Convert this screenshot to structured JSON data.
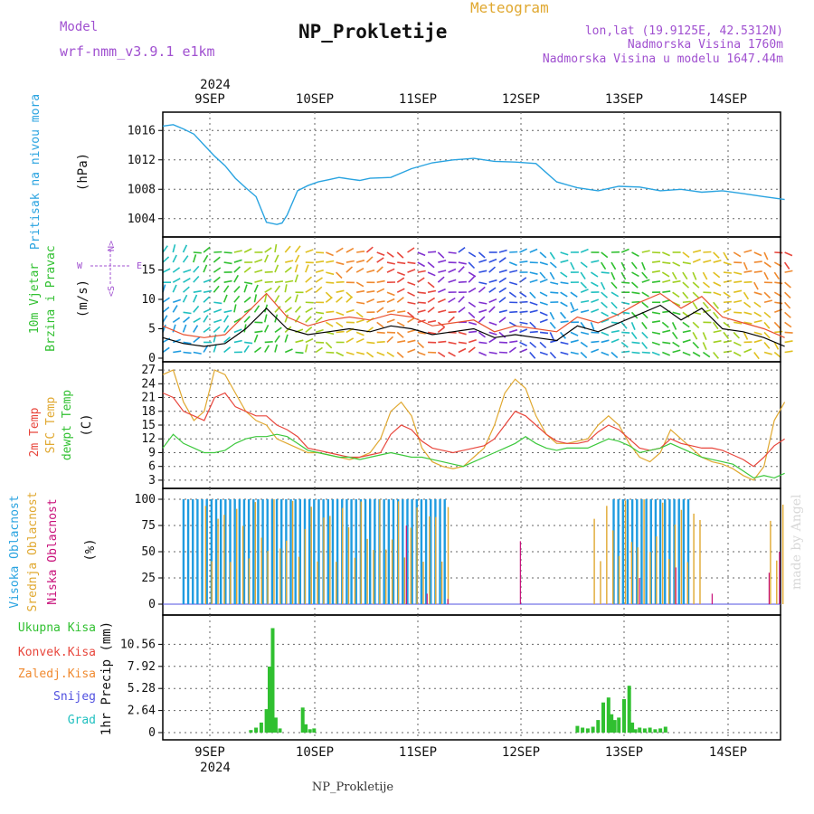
{
  "header": {
    "model_label": "Model",
    "model_name": "wrf-nmm_v3.9.1  e1km",
    "title": "NP_Prokletije",
    "subtitle": "Meteogram",
    "coords": "lon,lat (19.9125E, 42.5312N)",
    "altitude": "Nadmorska Visina 1760m",
    "model_altitude": "Nadmorska Visina u modelu 1647.44m"
  },
  "footer": {
    "station": "NP_Prokletije",
    "credit": "made by Angel"
  },
  "time_axis": {
    "year_label": "2024",
    "days": [
      "9SEP",
      "10SEP",
      "11SEP",
      "12SEP",
      "13SEP",
      "14SEP"
    ]
  },
  "colors": {
    "pressure": "#29a3e0",
    "wind_speed": "#000000",
    "wind_gust": "#e8502e",
    "temp_2m": "#e8463c",
    "temp_sfc": "#e0a830",
    "dewpoint": "#3cc83c",
    "cloud_high": "#1e9be0",
    "cloud_mid": "#e0a830",
    "cloud_low": "#c8107a",
    "precip_total": "#30c030",
    "panel_label_blue": "#29a3e0",
    "panel_label_green": "#30c030",
    "panel_label_purple": "#a050d0"
  },
  "chart_data": [
    {
      "type": "line",
      "name": "pressure",
      "ylabel_side": "Pritisak na nivou mora",
      "ylabel": "(hPa)",
      "yticks": [
        "1016",
        "1012",
        "1008",
        "1004"
      ],
      "ylim": [
        1002,
        1018
      ],
      "grid": true,
      "x_days": [
        0,
        0.1,
        0.2,
        0.3,
        0.4,
        0.5,
        0.6,
        0.7,
        0.8,
        0.9,
        1.0,
        1.1,
        1.15,
        1.2,
        1.3,
        1.4,
        1.5,
        1.6,
        1.7,
        1.8,
        1.9,
        2.0,
        2.2,
        2.4,
        2.6,
        2.8,
        3.0,
        3.2,
        3.4,
        3.6,
        3.8,
        4.0,
        4.2,
        4.4,
        4.6,
        4.8,
        5.0,
        5.2,
        5.4,
        5.6,
        5.8,
        6.0
      ],
      "series": [
        {
          "name": "",
          "values": [
            1016.6,
            1016.8,
            1016.2,
            1015.5,
            1014.0,
            1012.5,
            1011.2,
            1009.5,
            1008.2,
            1007.0,
            1003.5,
            1003.2,
            1003.4,
            1004.5,
            1007.8,
            1008.5,
            1009.0,
            1009.3,
            1009.6,
            1009.4,
            1009.2,
            1009.5,
            1009.6,
            1010.8,
            1011.6,
            1012.0,
            1012.2,
            1011.8,
            1011.7,
            1011.5,
            1009.0,
            1008.2,
            1007.8,
            1008.4,
            1008.3,
            1007.8,
            1008.0,
            1007.6,
            1007.8,
            1007.4,
            1007.0,
            1006.6
          ]
        }
      ]
    },
    {
      "type": "line",
      "name": "wind",
      "ylabel_side": "10m Vjetar Brzina i Pravac",
      "ylabel": "(m/s)",
      "compass": {
        "n": "N",
        "s": "S",
        "e": "E",
        "w": "W"
      },
      "yticks": [
        "15",
        "10",
        "5",
        "0"
      ],
      "ylim": [
        0,
        20
      ],
      "x_days": [
        0,
        0.2,
        0.4,
        0.6,
        0.8,
        1.0,
        1.2,
        1.4,
        1.6,
        1.8,
        2.0,
        2.2,
        2.4,
        2.6,
        2.8,
        3.0,
        3.2,
        3.4,
        3.6,
        3.8,
        4.0,
        4.2,
        4.4,
        4.6,
        4.8,
        5.0,
        5.2,
        5.4,
        5.6,
        5.8,
        6.0
      ],
      "series": [
        {
          "name": "",
          "values": [
            3.5,
            2.5,
            2.0,
            2.5,
            5.0,
            8.5,
            5.0,
            4.0,
            4.5,
            5.0,
            4.5,
            5.5,
            5.0,
            4.0,
            4.5,
            5.0,
            3.5,
            4.0,
            3.5,
            3.0,
            5.5,
            4.5,
            6.0,
            7.5,
            9.0,
            6.5,
            8.5,
            5.0,
            4.5,
            3.5,
            2.0
          ]
        },
        {
          "name": "",
          "values": [
            5.5,
            4.0,
            3.5,
            4.0,
            7.5,
            11.0,
            7.0,
            5.5,
            6.5,
            7.0,
            6.5,
            7.5,
            7.0,
            5.5,
            6.0,
            6.5,
            4.5,
            5.5,
            5.0,
            4.5,
            7.0,
            6.0,
            7.5,
            9.5,
            11.0,
            8.5,
            10.5,
            7.0,
            6.0,
            5.0,
            3.5
          ]
        }
      ]
    },
    {
      "type": "line",
      "name": "temperature",
      "ylabel_side": "2m Temp / SFC Temp / dewpt Temp",
      "series_labels": [
        "2m Temp",
        "SFC Temp",
        "dewpt Temp"
      ],
      "ylabel": "(C)",
      "yticks": [
        "27",
        "24",
        "21",
        "18",
        "15",
        "12",
        "9",
        "6",
        "3"
      ],
      "ylim": [
        2,
        28
      ],
      "x_days": [
        0,
        0.1,
        0.2,
        0.3,
        0.4,
        0.5,
        0.6,
        0.7,
        0.8,
        0.9,
        1.0,
        1.1,
        1.2,
        1.3,
        1.4,
        1.5,
        1.6,
        1.7,
        1.8,
        1.9,
        2.0,
        2.1,
        2.2,
        2.3,
        2.4,
        2.5,
        2.6,
        2.7,
        2.8,
        2.9,
        3.0,
        3.1,
        3.2,
        3.3,
        3.4,
        3.5,
        3.6,
        3.7,
        3.8,
        3.9,
        4.0,
        4.1,
        4.2,
        4.3,
        4.4,
        4.5,
        4.6,
        4.7,
        4.8,
        4.9,
        5.0,
        5.1,
        5.2,
        5.3,
        5.4,
        5.5,
        5.6,
        5.7,
        5.8,
        5.9,
        6.0
      ],
      "series": [
        {
          "name": "",
          "values": [
            22,
            21,
            18,
            17,
            16,
            21,
            22,
            19,
            18,
            17,
            17,
            15,
            14,
            12.5,
            10,
            9.5,
            9,
            8.5,
            8,
            8,
            8.5,
            9,
            13,
            15,
            14,
            11.5,
            10,
            9.5,
            9,
            9.5,
            10,
            10.5,
            12,
            15,
            18,
            17,
            15,
            13,
            11.5,
            11,
            11,
            11.5,
            13.5,
            15,
            14,
            12,
            10,
            9.5,
            10,
            12,
            11,
            10.5,
            10,
            10,
            9.5,
            8.5,
            7.5,
            6,
            8,
            10.5,
            12
          ]
        },
        {
          "name": "",
          "values": [
            26,
            27,
            20,
            16,
            18,
            27,
            26,
            22,
            18,
            16,
            15,
            12,
            11,
            10,
            9,
            9,
            8.5,
            8,
            7.5,
            8,
            9,
            12,
            18,
            20,
            17,
            10,
            7,
            6,
            5.5,
            6,
            8,
            10,
            15,
            22,
            25,
            23,
            17,
            13,
            11,
            11,
            11.5,
            12,
            15,
            17,
            15,
            11,
            8,
            7,
            9,
            14,
            12,
            10,
            8,
            7,
            6.5,
            5.5,
            4,
            3,
            6,
            16,
            20
          ]
        },
        {
          "name": "",
          "values": [
            10,
            13,
            11,
            10,
            9,
            9,
            9.5,
            11,
            12,
            12.5,
            12.5,
            13,
            12.5,
            11,
            9.5,
            9,
            8.5,
            8,
            8,
            7.5,
            8,
            8.5,
            9,
            8.5,
            8,
            8,
            7.5,
            7,
            6.5,
            6,
            7,
            8,
            9,
            10,
            11,
            12.5,
            11,
            10,
            9.5,
            10,
            10,
            10,
            11,
            12,
            11.5,
            10.5,
            9,
            9.5,
            10,
            11,
            10,
            9,
            8,
            7.5,
            7,
            6.5,
            5,
            3.5,
            4,
            3.5,
            4.5
          ]
        }
      ]
    },
    {
      "type": "bar",
      "name": "cloud_cover",
      "ylabel_side": "Visoka Oblacnost / Srednja Oblacnost / Niska Oblacnost",
      "series_labels": [
        "Visoka Oblacnost",
        "Srednja Oblacnost",
        "Niska Oblacnost"
      ],
      "ylabel": "(%)",
      "yticks": [
        "100",
        "75",
        "50",
        "25",
        "0"
      ],
      "ylim": [
        0,
        100
      ],
      "high_cloud_100_day_ranges": [
        [
          0.2,
          2.75
        ],
        [
          4.35,
          5.1
        ]
      ],
      "mid_cloud_ranges": [
        [
          0.4,
          2.8
        ],
        [
          4.15,
          5.2
        ],
        [
          5.85,
          6.0
        ]
      ],
      "low_cloud_spikes_days": [
        2.35,
        2.55,
        2.75,
        3.45,
        4.6,
        4.95,
        5.3,
        5.85,
        5.95
      ],
      "low_cloud_spike_values": [
        75,
        10,
        5,
        60,
        25,
        35,
        10,
        30,
        50
      ]
    },
    {
      "type": "bar",
      "name": "precipitation",
      "ylabel_side": "1hr Precip (mm)",
      "legend": [
        "Ukupna  Kisa",
        "Konvek.Kisa",
        "Zaledj.Kisa",
        "Snijeg",
        "Grad"
      ],
      "legend_colors": [
        "#30c030",
        "#e8463c",
        "#f08a30",
        "#5050e0",
        "#20c0c0"
      ],
      "ylabel": "1hr Precip (mm)",
      "yticks": [
        "10.56",
        "7.92",
        "5.28",
        "2.64",
        "0"
      ],
      "ylim": [
        0,
        13.2
      ],
      "x_days": [
        0.85,
        0.9,
        0.95,
        1.0,
        1.03,
        1.06,
        1.09,
        1.13,
        1.35,
        1.38,
        1.42,
        1.46,
        4.0,
        4.05,
        4.1,
        4.15,
        4.2,
        4.25,
        4.3,
        4.33,
        4.36,
        4.4,
        4.45,
        4.5,
        4.53,
        4.56,
        4.6,
        4.65,
        4.7,
        4.75,
        4.8,
        4.85
      ],
      "values": [
        0.3,
        0.6,
        1.2,
        2.8,
        7.9,
        12.5,
        1.8,
        0.5,
        3.0,
        1.0,
        0.4,
        0.5,
        0.8,
        0.6,
        0.5,
        0.7,
        1.5,
        3.6,
        4.2,
        2.2,
        1.5,
        1.8,
        4.0,
        5.6,
        1.2,
        0.4,
        0.6,
        0.5,
        0.6,
        0.4,
        0.5,
        0.7
      ]
    }
  ]
}
